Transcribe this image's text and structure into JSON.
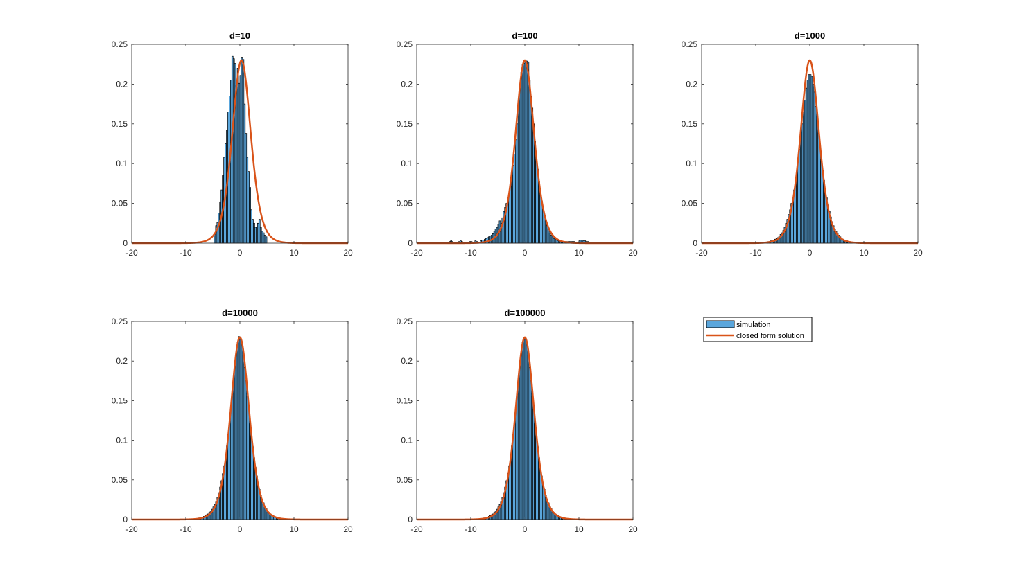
{
  "figure": {
    "background": "#ffffff",
    "bar_face_color": "#5aa6dc",
    "bar_edge_color": "#000000",
    "curve_color": "#d95319"
  },
  "legend": {
    "placement": "bottom-right empty tile",
    "entries": [
      {
        "label": "simulation",
        "kind": "bar"
      },
      {
        "label": "closed form solution",
        "kind": "line"
      }
    ]
  },
  "chart_data": [
    {
      "type": "bar",
      "title": "d=10",
      "xlim": [
        -20,
        20
      ],
      "ylim": [
        0,
        0.25
      ],
      "xticks": [
        "-20",
        "-10",
        "0",
        "10",
        "20"
      ],
      "yticks": [
        "0",
        "0.05",
        "0.1",
        "0.15",
        "0.2",
        "0.25"
      ],
      "bin_width": 0.25,
      "bin_centers": [
        -4.625,
        -4.375,
        -4.125,
        -3.875,
        -3.625,
        -3.375,
        -3.125,
        -2.875,
        -2.625,
        -2.375,
        -2.125,
        -1.875,
        -1.625,
        -1.375,
        -1.125,
        -0.875,
        -0.625,
        -0.375,
        -0.125,
        0.125,
        0.375,
        0.625,
        0.875,
        1.125,
        1.375,
        1.625,
        1.875,
        2.125,
        2.375,
        2.625,
        2.875,
        3.125,
        3.375,
        3.625,
        3.875,
        4.125,
        4.375,
        4.625,
        4.875
      ],
      "values": [
        0.012,
        0.022,
        0.026,
        0.038,
        0.052,
        0.067,
        0.085,
        0.108,
        0.125,
        0.142,
        0.165,
        0.185,
        0.205,
        0.235,
        0.232,
        0.226,
        0.199,
        0.22,
        0.201,
        0.211,
        0.233,
        0.231,
        0.175,
        0.138,
        0.108,
        0.09,
        0.07,
        0.042,
        0.03,
        0.025,
        0.02,
        0.02,
        0.025,
        0.03,
        0.02,
        0.015,
        0.013,
        0.01,
        0.008
      ],
      "curve": {
        "name": "closed form solution",
        "center": 0.3,
        "peak": 0.23
      }
    },
    {
      "type": "bar",
      "title": "d=100",
      "xlim": [
        -20,
        20
      ],
      "ylim": [
        0,
        0.25
      ],
      "xticks": [
        "-20",
        "-10",
        "0",
        "10",
        "20"
      ],
      "yticks": [
        "0",
        "0.05",
        "0.1",
        "0.15",
        "0.2",
        "0.25"
      ],
      "bin_width": 0.25,
      "bin_centers": [
        -13.875,
        -13.625,
        -13.375,
        -12.125,
        -11.875,
        -11.625,
        -10.125,
        -9.875,
        -9.125,
        -8.875,
        -8.125,
        -7.875,
        -7.625,
        -7.375,
        -7.125,
        -6.875,
        -6.625,
        -6.375,
        -6.125,
        -5.875,
        -5.625,
        -5.375,
        -5.125,
        -4.875,
        -4.625,
        -4.375,
        -4.125,
        -3.875,
        -3.625,
        -3.375,
        -3.125,
        -2.875,
        -2.625,
        -2.375,
        -2.125,
        -1.875,
        -1.625,
        -1.375,
        -1.125,
        -0.875,
        -0.625,
        -0.375,
        -0.125,
        0.125,
        0.375,
        0.625,
        0.875,
        1.125,
        1.375,
        1.625,
        1.875,
        2.125,
        2.375,
        2.625,
        2.875,
        3.125,
        3.375,
        3.625,
        3.875,
        4.125,
        4.375,
        4.625,
        4.875,
        5.125,
        5.375,
        5.625,
        5.875,
        6.125,
        6.375,
        6.625,
        6.875,
        7.125,
        7.375,
        7.625,
        7.875,
        8.125,
        8.375,
        8.625,
        8.875,
        9.125,
        10.125,
        10.375,
        10.625,
        10.875,
        11.125,
        11.375,
        11.625
      ],
      "values": [
        0.002,
        0.003,
        0.002,
        0.002,
        0.003,
        0.002,
        0.002,
        0.002,
        0.003,
        0.002,
        0.003,
        0.004,
        0.004,
        0.005,
        0.006,
        0.007,
        0.008,
        0.009,
        0.01,
        0.012,
        0.015,
        0.018,
        0.02,
        0.024,
        0.028,
        0.025,
        0.032,
        0.04,
        0.045,
        0.05,
        0.057,
        0.063,
        0.072,
        0.085,
        0.098,
        0.112,
        0.13,
        0.15,
        0.17,
        0.195,
        0.215,
        0.225,
        0.226,
        0.23,
        0.229,
        0.228,
        0.205,
        0.185,
        0.17,
        0.15,
        0.128,
        0.11,
        0.093,
        0.078,
        0.065,
        0.053,
        0.043,
        0.035,
        0.028,
        0.022,
        0.017,
        0.013,
        0.01,
        0.008,
        0.006,
        0.005,
        0.004,
        0.003,
        0.003,
        0.002,
        0.002,
        0.002,
        0.002,
        0.002,
        0.002,
        0.002,
        0.002,
        0.002,
        0.002,
        0.002,
        0.003,
        0.004,
        0.004,
        0.003,
        0.003,
        0.002,
        0.002
      ],
      "curve": {
        "name": "closed form solution",
        "center": 0.0,
        "peak": 0.23
      }
    },
    {
      "type": "bar",
      "title": "d=1000",
      "xlim": [
        -20,
        20
      ],
      "ylim": [
        0,
        0.25
      ],
      "xticks": [
        "-20",
        "-10",
        "0",
        "10",
        "20"
      ],
      "yticks": [
        "0",
        "0.05",
        "0.1",
        "0.15",
        "0.2",
        "0.25"
      ],
      "bin_width": 0.25,
      "bin_centers": [
        -7.875,
        -7.625,
        -7.375,
        -7.125,
        -6.875,
        -6.625,
        -6.375,
        -6.125,
        -5.875,
        -5.625,
        -5.375,
        -5.125,
        -4.875,
        -4.625,
        -4.375,
        -4.125,
        -3.875,
        -3.625,
        -3.375,
        -3.125,
        -2.875,
        -2.625,
        -2.375,
        -2.125,
        -1.875,
        -1.625,
        -1.375,
        -1.125,
        -0.875,
        -0.625,
        -0.375,
        -0.125,
        0.125,
        0.375,
        0.625,
        0.875,
        1.125,
        1.375,
        1.625,
        1.875,
        2.125,
        2.375,
        2.625,
        2.875,
        3.125,
        3.375,
        3.625,
        3.875,
        4.125,
        4.375,
        4.625,
        4.875,
        5.125,
        5.375,
        5.625,
        5.875,
        6.125,
        6.375,
        6.625,
        6.875,
        7.125,
        7.375,
        7.625,
        7.875
      ],
      "values": [
        0.001,
        0.002,
        0.002,
        0.003,
        0.003,
        0.004,
        0.005,
        0.006,
        0.007,
        0.009,
        0.011,
        0.013,
        0.016,
        0.02,
        0.025,
        0.03,
        0.036,
        0.042,
        0.05,
        0.058,
        0.067,
        0.077,
        0.089,
        0.102,
        0.118,
        0.135,
        0.15,
        0.165,
        0.18,
        0.195,
        0.205,
        0.212,
        0.212,
        0.21,
        0.2,
        0.19,
        0.172,
        0.155,
        0.138,
        0.122,
        0.106,
        0.092,
        0.079,
        0.067,
        0.057,
        0.048,
        0.04,
        0.033,
        0.027,
        0.022,
        0.018,
        0.015,
        0.012,
        0.01,
        0.008,
        0.006,
        0.005,
        0.004,
        0.003,
        0.003,
        0.002,
        0.002,
        0.001,
        0.001
      ],
      "curve": {
        "name": "closed form solution",
        "center": 0.0,
        "peak": 0.23
      }
    },
    {
      "type": "bar",
      "title": "d=10000",
      "xlim": [
        -20,
        20
      ],
      "ylim": [
        0,
        0.25
      ],
      "xticks": [
        "-20",
        "-10",
        "0",
        "10",
        "20"
      ],
      "yticks": [
        "0",
        "0.05",
        "0.1",
        "0.15",
        "0.2",
        "0.25"
      ],
      "bin_width": 0.25,
      "bin_centers": [
        -7.875,
        -7.625,
        -7.375,
        -7.125,
        -6.875,
        -6.625,
        -6.375,
        -6.125,
        -5.875,
        -5.625,
        -5.375,
        -5.125,
        -4.875,
        -4.625,
        -4.375,
        -4.125,
        -3.875,
        -3.625,
        -3.375,
        -3.125,
        -2.875,
        -2.625,
        -2.375,
        -2.125,
        -1.875,
        -1.625,
        -1.375,
        -1.125,
        -0.875,
        -0.625,
        -0.375,
        -0.125,
        0.125,
        0.375,
        0.625,
        0.875,
        1.125,
        1.375,
        1.625,
        1.875,
        2.125,
        2.375,
        2.625,
        2.875,
        3.125,
        3.375,
        3.625,
        3.875,
        4.125,
        4.375,
        4.625,
        4.875,
        5.125,
        5.375,
        5.625,
        5.875,
        6.125,
        6.375,
        6.625,
        6.875,
        7.125,
        7.375,
        7.625,
        7.875
      ],
      "values": [
        0.001,
        0.002,
        0.002,
        0.003,
        0.003,
        0.004,
        0.005,
        0.006,
        0.007,
        0.009,
        0.011,
        0.013,
        0.016,
        0.019,
        0.023,
        0.028,
        0.034,
        0.041,
        0.049,
        0.058,
        0.068,
        0.08,
        0.093,
        0.108,
        0.124,
        0.141,
        0.158,
        0.176,
        0.194,
        0.211,
        0.224,
        0.231,
        0.229,
        0.222,
        0.207,
        0.192,
        0.175,
        0.156,
        0.139,
        0.122,
        0.106,
        0.092,
        0.078,
        0.066,
        0.055,
        0.046,
        0.038,
        0.031,
        0.025,
        0.021,
        0.017,
        0.014,
        0.011,
        0.009,
        0.007,
        0.006,
        0.005,
        0.004,
        0.003,
        0.003,
        0.002,
        0.002,
        0.001,
        0.001
      ],
      "curve": {
        "name": "closed form solution",
        "center": 0.0,
        "peak": 0.23
      }
    },
    {
      "type": "bar",
      "title": "d=100000",
      "xlim": [
        -20,
        20
      ],
      "ylim": [
        0,
        0.25
      ],
      "xticks": [
        "-20",
        "-10",
        "0",
        "10",
        "20"
      ],
      "yticks": [
        "0",
        "0.05",
        "0.1",
        "0.15",
        "0.2",
        "0.25"
      ],
      "bin_width": 0.25,
      "bin_centers": [
        -7.875,
        -7.625,
        -7.375,
        -7.125,
        -6.875,
        -6.625,
        -6.375,
        -6.125,
        -5.875,
        -5.625,
        -5.375,
        -5.125,
        -4.875,
        -4.625,
        -4.375,
        -4.125,
        -3.875,
        -3.625,
        -3.375,
        -3.125,
        -2.875,
        -2.625,
        -2.375,
        -2.125,
        -1.875,
        -1.625,
        -1.375,
        -1.125,
        -0.875,
        -0.625,
        -0.375,
        -0.125,
        0.125,
        0.375,
        0.625,
        0.875,
        1.125,
        1.375,
        1.625,
        1.875,
        2.125,
        2.375,
        2.625,
        2.875,
        3.125,
        3.375,
        3.625,
        3.875,
        4.125,
        4.375,
        4.625,
        4.875,
        5.125,
        5.375,
        5.625,
        5.875,
        6.125,
        6.375,
        6.625,
        6.875,
        7.125,
        7.375,
        7.625,
        7.875
      ],
      "values": [
        0.001,
        0.002,
        0.002,
        0.003,
        0.003,
        0.004,
        0.005,
        0.006,
        0.007,
        0.009,
        0.011,
        0.013,
        0.016,
        0.019,
        0.023,
        0.028,
        0.034,
        0.041,
        0.049,
        0.058,
        0.068,
        0.08,
        0.093,
        0.108,
        0.124,
        0.141,
        0.158,
        0.176,
        0.194,
        0.211,
        0.224,
        0.229,
        0.229,
        0.222,
        0.207,
        0.192,
        0.175,
        0.156,
        0.139,
        0.122,
        0.106,
        0.092,
        0.078,
        0.066,
        0.055,
        0.046,
        0.038,
        0.031,
        0.025,
        0.021,
        0.017,
        0.014,
        0.011,
        0.009,
        0.007,
        0.006,
        0.005,
        0.004,
        0.003,
        0.003,
        0.002,
        0.002,
        0.001,
        0.001
      ],
      "curve": {
        "name": "closed form solution",
        "center": 0.0,
        "peak": 0.23
      }
    }
  ]
}
